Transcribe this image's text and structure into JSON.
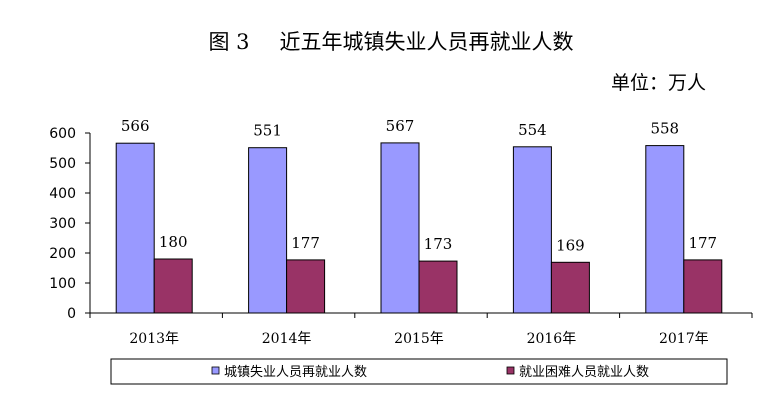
{
  "title": {
    "figure_no": "图 3",
    "text": "近五年城镇失业人员再就业人数"
  },
  "unit_label": "单位：万人",
  "chart_data": {
    "type": "bar",
    "title": "近五年城镇失业人员再就业人数",
    "xlabel": "",
    "ylabel": "",
    "unit": "万人",
    "categories": [
      "2013年",
      "2014年",
      "2015年",
      "2016年",
      "2017年"
    ],
    "ylim": [
      0,
      600
    ],
    "yticks": [
      0,
      100,
      200,
      300,
      400,
      500,
      600
    ],
    "grid": false,
    "legend_position": "bottom",
    "series": [
      {
        "name": "城镇失业人员再就业人数",
        "color": "#9999ff",
        "values": [
          566,
          551,
          567,
          554,
          558
        ]
      },
      {
        "name": "就业困难人员就业人数",
        "color": "#993366",
        "values": [
          180,
          177,
          173,
          169,
          177
        ]
      }
    ]
  }
}
